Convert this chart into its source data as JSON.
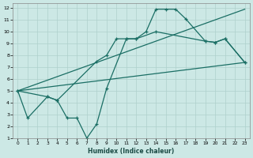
{
  "xlabel": "Humidex (Indice chaleur)",
  "bg_color": "#cce8e5",
  "grid_color": "#aed0cc",
  "line_color": "#1a6e64",
  "xlim": [
    -0.5,
    23.5
  ],
  "ylim": [
    1,
    12.4
  ],
  "xticks": [
    0,
    1,
    2,
    3,
    4,
    5,
    6,
    7,
    8,
    9,
    10,
    11,
    12,
    13,
    14,
    15,
    16,
    17,
    18,
    19,
    20,
    21,
    22,
    23
  ],
  "yticks": [
    1,
    2,
    3,
    4,
    5,
    6,
    7,
    8,
    9,
    10,
    11,
    12
  ],
  "series_zigzag": {
    "x": [
      0,
      1,
      3,
      4,
      5,
      6,
      7,
      8,
      9,
      11,
      12,
      14,
      19,
      20,
      21,
      23
    ],
    "y": [
      5,
      2.7,
      4.5,
      4.2,
      2.7,
      2.7,
      1.0,
      2.2,
      5.2,
      9.4,
      9.4,
      10.0,
      9.2,
      9.1,
      9.4,
      7.4
    ]
  },
  "series_smooth": {
    "x": [
      0,
      3,
      4,
      8,
      9,
      10,
      11,
      12,
      13,
      14,
      15,
      16,
      17,
      19,
      20,
      21,
      23
    ],
    "y": [
      5,
      4.5,
      4.2,
      7.5,
      8.0,
      9.4,
      9.4,
      9.4,
      10.0,
      11.9,
      11.9,
      11.9,
      11.1,
      9.2,
      9.1,
      9.4,
      7.4
    ]
  },
  "series_line_upper": {
    "x": [
      0,
      23
    ],
    "y": [
      5,
      11.9
    ]
  },
  "series_line_lower": {
    "x": [
      0,
      23
    ],
    "y": [
      5,
      7.4
    ]
  }
}
